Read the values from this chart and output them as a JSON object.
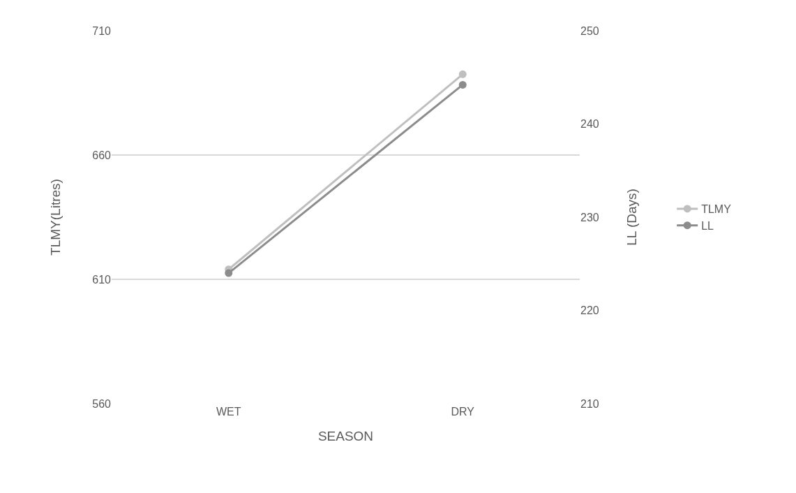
{
  "chart_data": {
    "type": "line",
    "xlabel": "SEASON",
    "ylabel": "TLMY(Litres)",
    "y2label": "LL (Days)",
    "categories": [
      "WET",
      "DRY"
    ],
    "series": [
      {
        "name": "TLMY",
        "color": "#bfbfbf",
        "values": [
          614,
          692.5
        ]
      },
      {
        "name": "LL",
        "color": "#8c8c8c",
        "values": [
          224,
          244.2
        ],
        "axis": "y2"
      }
    ],
    "ylim": [
      560,
      710
    ],
    "yticks": [
      560,
      610,
      660,
      710
    ],
    "y2lim": [
      210,
      250
    ],
    "y2ticks": [
      210,
      220,
      230,
      240,
      250
    ],
    "grid": "y",
    "legend": "right",
    "marker": "circle",
    "line_style": "solid"
  }
}
